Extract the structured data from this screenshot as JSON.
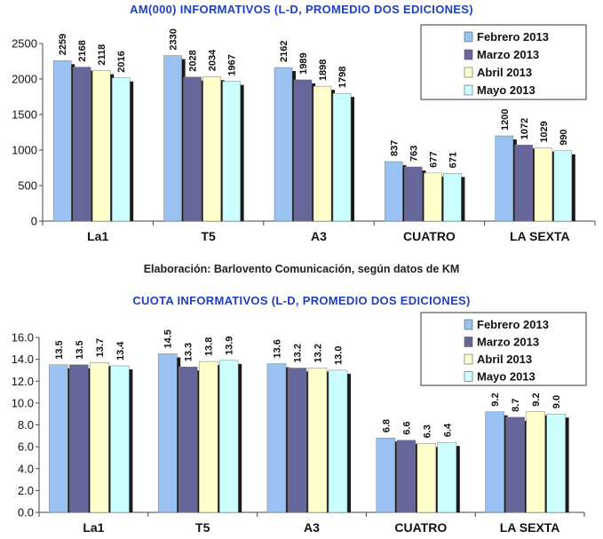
{
  "chart_data": [
    {
      "type": "bar",
      "title": "AM(000) INFORMATIVOS (L-D, PROMEDIO DOS EDICIONES)",
      "xlabel": "",
      "ylabel": "",
      "ylim": [
        0,
        2500
      ],
      "yticks": [
        "0",
        "500",
        "1000",
        "1500",
        "2000",
        "2500"
      ],
      "categories": [
        "La1",
        "T5",
        "A3",
        "CUATRO",
        "LA SEXTA"
      ],
      "series": [
        {
          "name": "Febrero 2013",
          "values": [
            2259,
            2330,
            2162,
            837,
            1200
          ],
          "labels": [
            "2259",
            "2330",
            "2162",
            "837",
            "1200"
          ]
        },
        {
          "name": "Marzo 2013",
          "values": [
            2168,
            2028,
            1989,
            763,
            1072
          ],
          "labels": [
            "2168",
            "2028",
            "1989",
            "763",
            "1072"
          ]
        },
        {
          "name": "Abril 2013",
          "values": [
            2118,
            2034,
            1898,
            677,
            1029
          ],
          "labels": [
            "2118",
            "2034",
            "1898",
            "677",
            "1029"
          ]
        },
        {
          "name": "Mayo 2013",
          "values": [
            2016,
            1967,
            1798,
            671,
            990
          ],
          "labels": [
            "2016",
            "1967",
            "1798",
            "671",
            "990"
          ]
        }
      ],
      "legend": "top-right",
      "grid": false
    },
    {
      "type": "bar",
      "title": "CUOTA INFORMATIVOS (L-D, PROMEDIO DOS EDICIONES)",
      "xlabel": "",
      "ylabel": "",
      "ylim": [
        0,
        16
      ],
      "yticks": [
        "0.0",
        "2.0",
        "4.0",
        "6.0",
        "8.0",
        "10.0",
        "12.0",
        "14.0",
        "16.0"
      ],
      "categories": [
        "La1",
        "T5",
        "A3",
        "CUATRO",
        "LA SEXTA"
      ],
      "series": [
        {
          "name": "Febrero 2013",
          "values": [
            13.5,
            14.5,
            13.6,
            6.8,
            9.2
          ],
          "labels": [
            "13.5",
            "14.5",
            "13.6",
            "6.8",
            "9.2"
          ]
        },
        {
          "name": "Marzo 2013",
          "values": [
            13.5,
            13.3,
            13.2,
            6.6,
            8.7
          ],
          "labels": [
            "13.5",
            "13.3",
            "13.2",
            "6.6",
            "8.7"
          ]
        },
        {
          "name": "Abril 2013",
          "values": [
            13.7,
            13.8,
            13.2,
            6.3,
            9.2
          ],
          "labels": [
            "13.7",
            "13.8",
            "13.2",
            "6.3",
            "9.2"
          ]
        },
        {
          "name": "Mayo 2013",
          "values": [
            13.4,
            13.9,
            13.0,
            6.4,
            9.0
          ],
          "labels": [
            "13.4",
            "13.9",
            "13.0",
            "6.4",
            "9.0"
          ]
        }
      ],
      "legend": "top-right",
      "grid": false
    }
  ],
  "caption": "Elaboración: Barlovento Comunicación, según datos de KM",
  "colors": {
    "series": [
      "#99c2f2",
      "#66669a",
      "#ffffcc",
      "#ccffff"
    ],
    "shadow": "#1a1a1a",
    "title": "#1f3fbf",
    "axis": "#444444"
  }
}
